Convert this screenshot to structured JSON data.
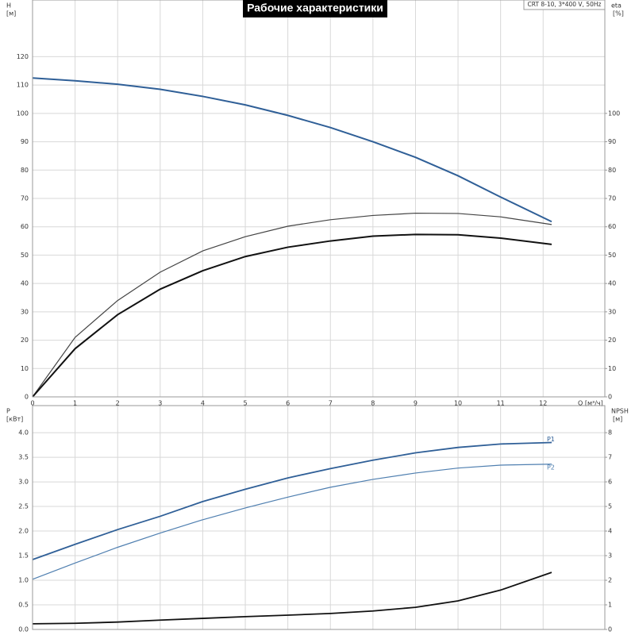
{
  "title": "Рабочие характеристики",
  "model": "CRT 8-10, 3*400 V, 50Hz",
  "chart_data": [
    {
      "type": "line",
      "y_label": "H",
      "y_unit": "[м]",
      "y2_label": "eta",
      "y2_unit": "[%]",
      "x_label": "Q [м³/ч]",
      "x": [
        0,
        1,
        2,
        3,
        4,
        5,
        6,
        7,
        8,
        9,
        10,
        11,
        12.2
      ],
      "xlim": [
        0,
        13.45
      ],
      "xticks": [
        0,
        1,
        2,
        3,
        4,
        5,
        6,
        7,
        8,
        9,
        10,
        11,
        12
      ],
      "ylim": [
        0,
        140
      ],
      "yticks": [
        0,
        10,
        20,
        30,
        40,
        50,
        60,
        70,
        80,
        90,
        100,
        110,
        120
      ],
      "y2lim": [
        0,
        140
      ],
      "y2ticks": [
        0,
        10,
        20,
        30,
        40,
        50,
        60,
        70,
        80,
        90,
        100
      ],
      "grid": true,
      "series": [
        {
          "color": "#2f5f97",
          "line_width": 2,
          "values": [
            112.5,
            111.5,
            110.3,
            108.5,
            106,
            103,
            99.3,
            95,
            90,
            84.5,
            78,
            70.5,
            61.8
          ]
        },
        {
          "color": "#444444",
          "line_width": 1.2,
          "axis": "y2",
          "values": [
            0,
            21,
            34,
            44,
            51.5,
            56.5,
            60.2,
            62.5,
            64,
            64.8,
            64.7,
            63.5,
            60.8
          ]
        },
        {
          "color": "#111111",
          "line_width": 2,
          "axis": "y2",
          "values": [
            0,
            17,
            29,
            38,
            44.5,
            49.5,
            52.8,
            55,
            56.7,
            57.3,
            57.2,
            56,
            53.8
          ]
        }
      ]
    },
    {
      "type": "line",
      "y_label": "P",
      "y_unit": "[кВт]",
      "y2_label": "NPSH",
      "y2_unit": "[м]",
      "x": [
        0,
        1,
        2,
        3,
        4,
        5,
        6,
        7,
        8,
        9,
        10,
        11,
        12.2
      ],
      "xlim": [
        0,
        13.45
      ],
      "xticks": [
        0,
        1,
        2,
        3,
        4,
        5,
        6,
        7,
        8,
        9,
        10,
        11,
        12
      ],
      "ylim": [
        0,
        4.55
      ],
      "yticks": [
        {
          "value": 0,
          "label": "0.0"
        },
        0.5,
        {
          "value": 1,
          "label": "1.0"
        },
        1.5,
        {
          "value": 2,
          "label": "2.0"
        },
        2.5,
        {
          "value": 3,
          "label": "3.0"
        },
        3.5,
        {
          "value": 4,
          "label": "4.0"
        }
      ],
      "y2lim": [
        0,
        9.1
      ],
      "y2ticks": [
        0,
        1,
        2,
        3,
        4,
        5,
        6,
        7,
        8
      ],
      "grid": true,
      "series": [
        {
          "name": "P1",
          "color": "#2f5f97",
          "line_width": 1.8,
          "values": [
            1.42,
            1.73,
            2.03,
            2.3,
            2.6,
            2.85,
            3.08,
            3.27,
            3.44,
            3.59,
            3.7,
            3.77,
            3.8
          ]
        },
        {
          "name": "P2",
          "color": "#4f7fb0",
          "line_width": 1.2,
          "values": [
            1.02,
            1.35,
            1.67,
            1.96,
            2.23,
            2.47,
            2.69,
            2.89,
            3.05,
            3.18,
            3.28,
            3.34,
            3.36
          ]
        },
        {
          "color": "#111111",
          "line_width": 1.8,
          "axis": "y2",
          "values": [
            0.23,
            0.25,
            0.3,
            0.38,
            0.45,
            0.52,
            0.58,
            0.65,
            0.75,
            0.9,
            1.16,
            1.6,
            2.32
          ]
        }
      ]
    }
  ]
}
